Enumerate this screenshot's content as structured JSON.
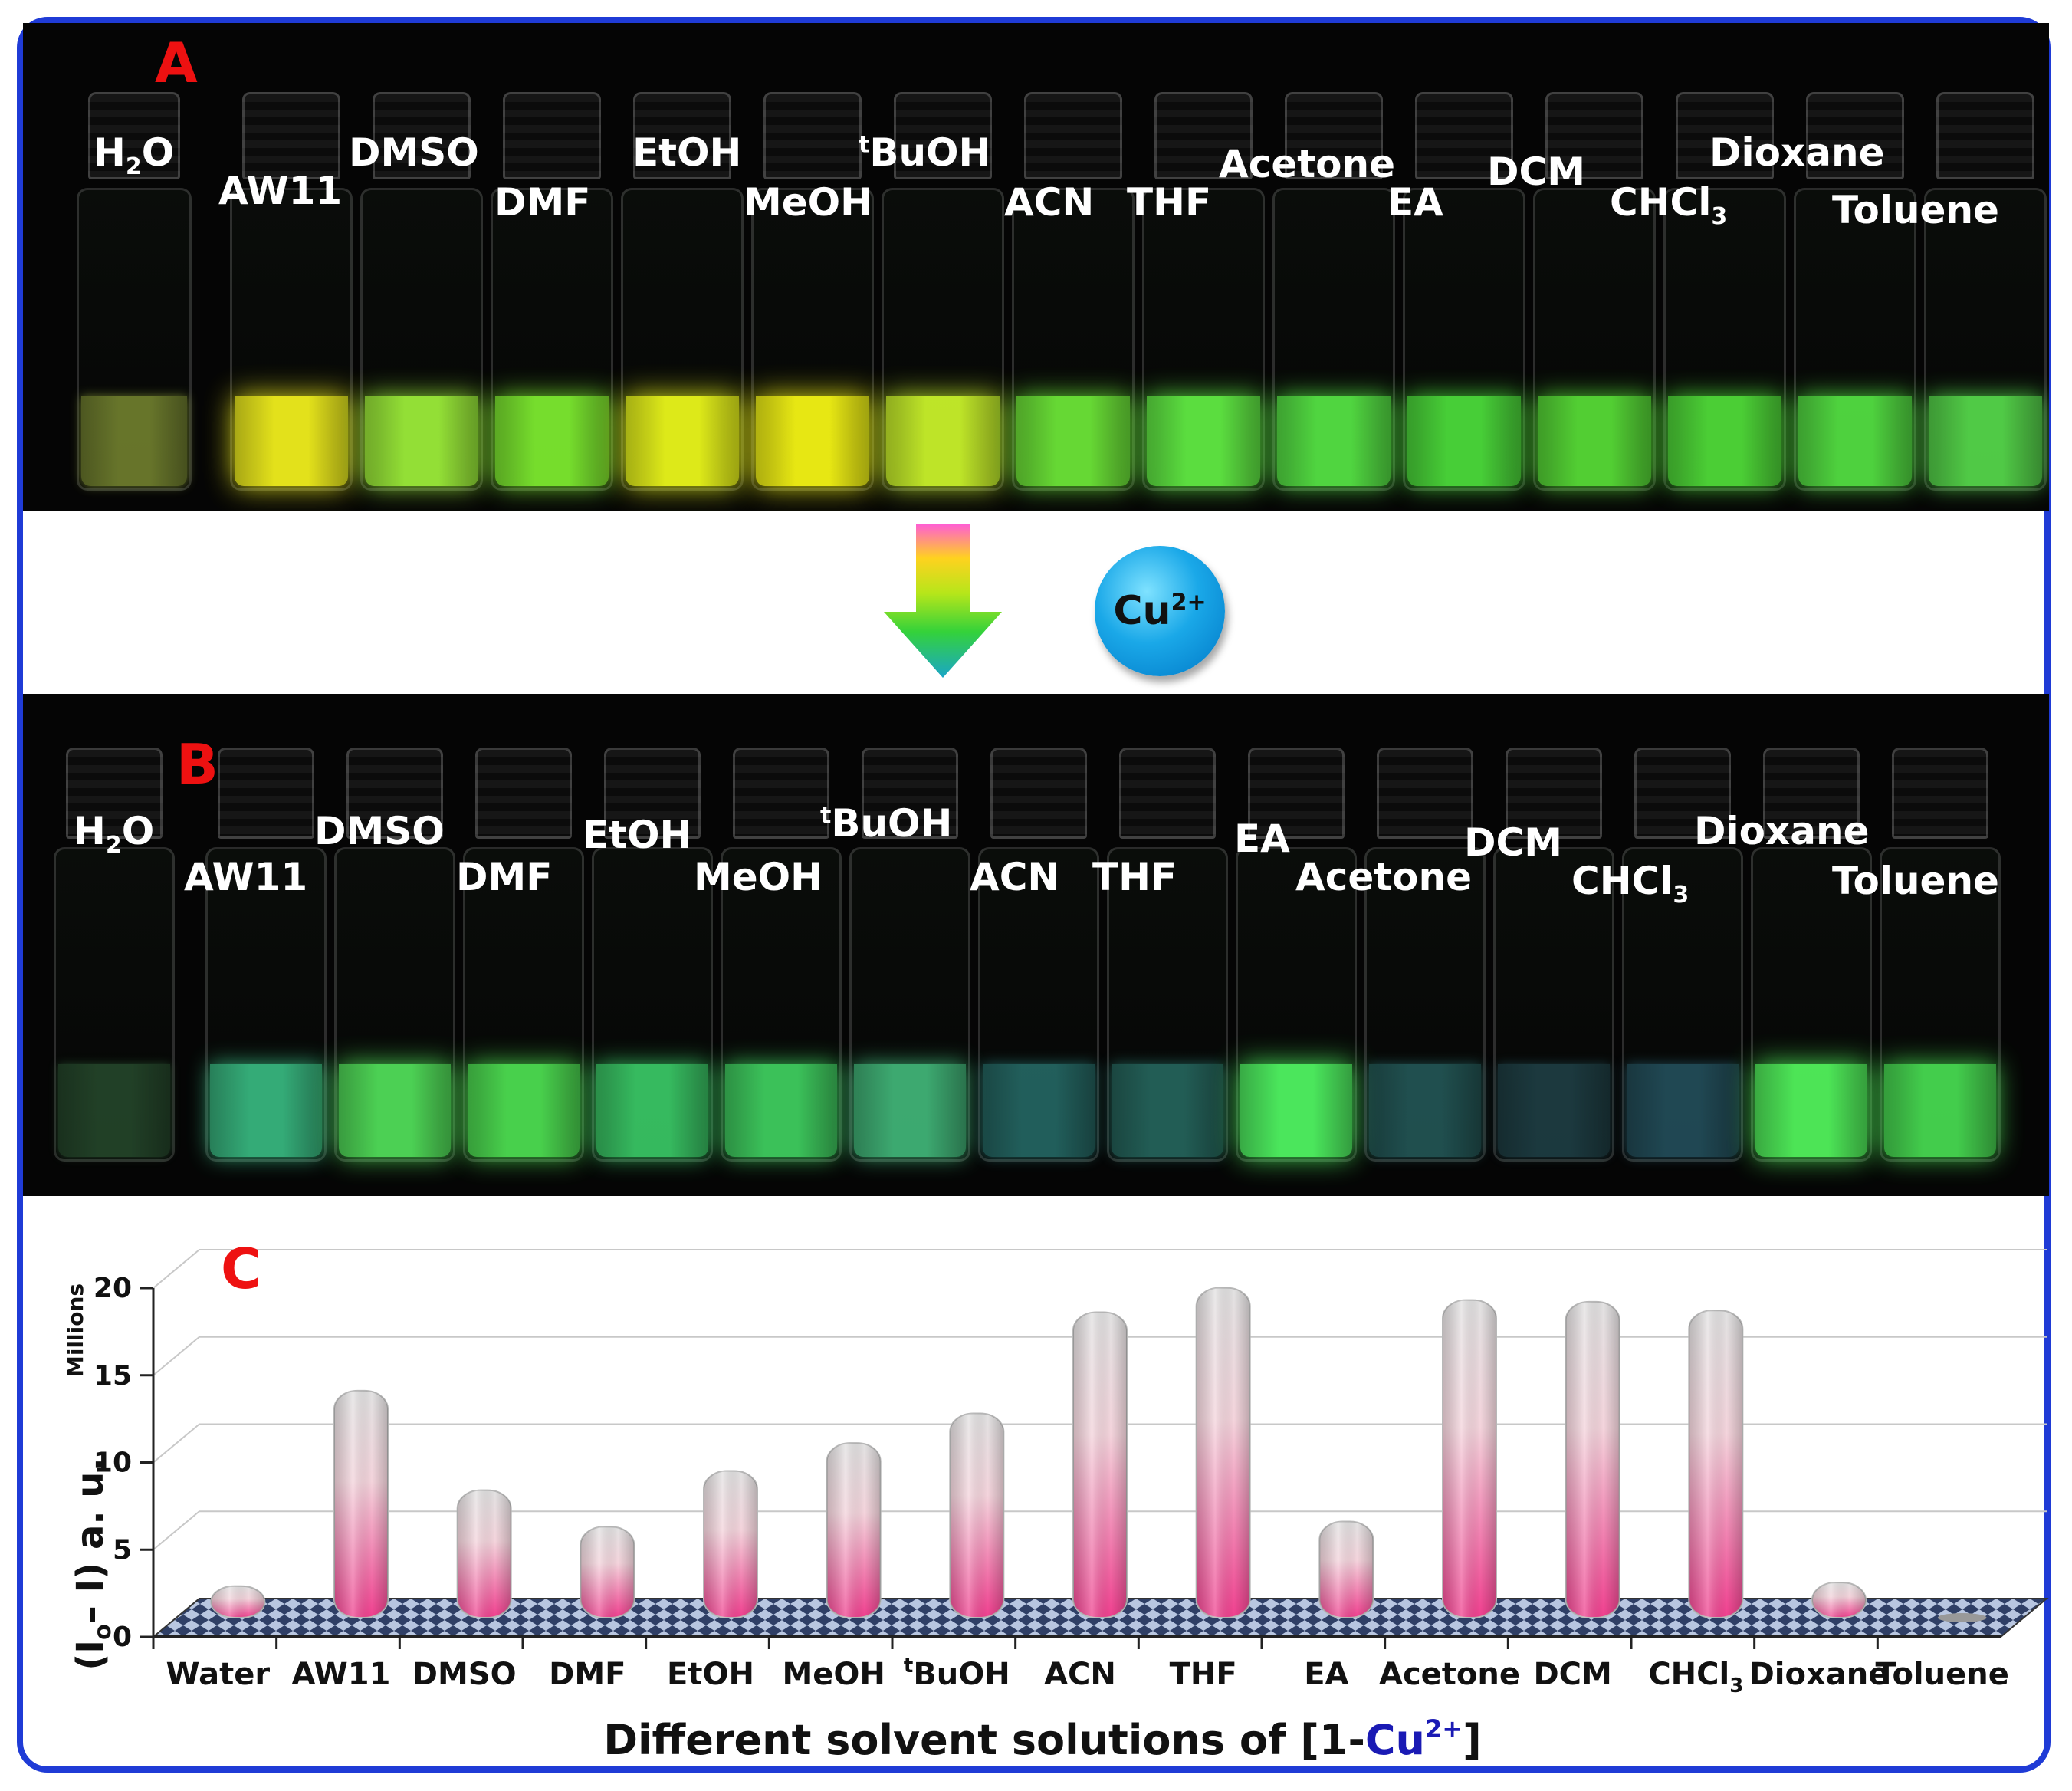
{
  "panels": {
    "a": {
      "letter": "A",
      "vials": [
        {
          "label": "H2O",
          "label_main": "H",
          "label_sub": "2",
          "label_tail": "O",
          "color": "#8fa23a",
          "glow": 0.35
        },
        {
          "label": "AW11",
          "label_main": "AW11",
          "label_sub": "",
          "label_tail": "",
          "color": "#e8e61c",
          "glow": 0.95
        },
        {
          "label": "DMSO",
          "label_main": "DMSO",
          "label_sub": "",
          "label_tail": "",
          "color": "#9ef03a",
          "glow": 0.85
        },
        {
          "label": "DMF",
          "label_main": "DMF",
          "label_sub": "",
          "label_tail": "",
          "color": "#7fee30",
          "glow": 0.85
        },
        {
          "label": "EtOH",
          "label_main": "EtOH",
          "label_sub": "",
          "label_tail": "",
          "color": "#e2ee1a",
          "glow": 0.95
        },
        {
          "label": "MeOH",
          "label_main": "MeOH",
          "label_sub": "",
          "label_tail": "",
          "color": "#ecec14",
          "glow": 0.95
        },
        {
          "label": "tBuOH",
          "label_main": "BuOH",
          "label_sup": "t",
          "label_sub": "",
          "label_tail": "",
          "color": "#c6ee2a",
          "glow": 0.9
        },
        {
          "label": "ACN",
          "label_main": "ACN",
          "label_sub": "",
          "label_tail": "",
          "color": "#6ee838",
          "glow": 0.85
        },
        {
          "label": "THF",
          "label_main": "THF",
          "label_sub": "",
          "label_tail": "",
          "color": "#62ee44",
          "glow": 0.85
        },
        {
          "label": "Acetone",
          "label_main": "Acetone",
          "label_sub": "",
          "label_tail": "",
          "color": "#58ea46",
          "glow": 0.8
        },
        {
          "label": "EA",
          "label_main": "EA",
          "label_sub": "",
          "label_tail": "",
          "color": "#4ee23c",
          "glow": 0.8
        },
        {
          "label": "DCM",
          "label_main": "DCM",
          "label_sub": "",
          "label_tail": "",
          "color": "#5ae238",
          "glow": 0.8
        },
        {
          "label": "CHCl3",
          "label_main": "CHCl",
          "label_sub": "3",
          "label_tail": "",
          "color": "#52e23a",
          "glow": 0.8
        },
        {
          "label": "Dioxane",
          "label_main": "Dioxane",
          "label_sub": "",
          "label_tail": "",
          "color": "#56e644",
          "glow": 0.8
        },
        {
          "label": "Toluene",
          "label_main": "Toluene",
          "label_sub": "",
          "label_tail": "",
          "color": "#5ae24e",
          "glow": 0.75
        }
      ]
    },
    "b": {
      "letter": "B",
      "vials": [
        {
          "label": "H2O",
          "label_main": "H",
          "label_sub": "2",
          "label_tail": "O",
          "color": "#2e5a36",
          "glow": 0.3
        },
        {
          "label": "AW11",
          "label_main": "AW11",
          "label_sub": "",
          "label_tail": "",
          "color": "#3cc68a",
          "glow": 0.7
        },
        {
          "label": "DMSO",
          "label_main": "DMSO",
          "label_sub": "",
          "label_tail": "",
          "color": "#52e05a",
          "glow": 0.85
        },
        {
          "label": "DMF",
          "label_main": "DMF",
          "label_sub": "",
          "label_tail": "",
          "color": "#4ee052",
          "glow": 0.85
        },
        {
          "label": "EtOH",
          "label_main": "EtOH",
          "label_sub": "",
          "label_tail": "",
          "color": "#3cd06a",
          "glow": 0.75
        },
        {
          "label": "MeOH",
          "label_main": "MeOH",
          "label_sub": "",
          "label_tail": "",
          "color": "#42d864",
          "glow": 0.75
        },
        {
          "label": "tBuOH",
          "label_main": "BuOH",
          "label_sup": "t",
          "label_sub": "",
          "label_tail": "",
          "color": "#46c482",
          "glow": 0.7
        },
        {
          "label": "ACN",
          "label_main": "ACN",
          "label_sub": "",
          "label_tail": "",
          "color": "#2b7c78",
          "glow": 0.45
        },
        {
          "label": "THF",
          "label_main": "THF",
          "label_sub": "",
          "label_tail": "",
          "color": "#2c7a70",
          "glow": 0.45
        },
        {
          "label": "EA",
          "label_main": "EA",
          "label_sub": "",
          "label_tail": "",
          "color": "#4ef060",
          "glow": 0.9
        },
        {
          "label": "Acetone",
          "label_main": "Acetone",
          "label_sub": "",
          "label_tail": "",
          "color": "#2a6a6a",
          "glow": 0.4
        },
        {
          "label": "DCM",
          "label_main": "DCM",
          "label_sub": "",
          "label_tail": "",
          "color": "#254e56",
          "glow": 0.35
        },
        {
          "label": "CHCl3",
          "label_main": "CHCl",
          "label_sub": "3",
          "label_tail": "",
          "color": "#2a6070",
          "glow": 0.4
        },
        {
          "label": "Dioxane",
          "label_main": "Dioxane",
          "label_sub": "",
          "label_tail": "",
          "color": "#50ee5a",
          "glow": 0.9
        },
        {
          "label": "Toluene",
          "label_main": "Toluene",
          "label_sub": "",
          "label_tail": "",
          "color": "#48dc52",
          "glow": 0.85
        }
      ]
    }
  },
  "arrow": {
    "ion_main": "Cu",
    "ion_sup": "2+"
  },
  "chart_data": {
    "type": "bar",
    "panel_letter": "C",
    "categories": [
      "Water",
      "AW11",
      "DMSO",
      "DMF",
      "EtOH",
      "MeOH",
      "BuOH",
      "ACN",
      "THF",
      "EA",
      "Acetone",
      "DCM",
      "CHCl",
      "Dioxane",
      "Toluene"
    ],
    "category_sups": [
      "",
      "",
      "",
      "",
      "",
      "",
      "t",
      "",
      "",
      "",
      "",
      "",
      "",
      "",
      ""
    ],
    "category_subs": [
      "",
      "",
      "",
      "",
      "",
      "",
      "",
      "",
      "",
      "",
      "",
      "",
      "3",
      "",
      ""
    ],
    "values": [
      1.2,
      12.4,
      6.7,
      4.6,
      7.8,
      9.4,
      11.1,
      16.9,
      18.3,
      4.9,
      17.6,
      17.5,
      17.0,
      1.4,
      0.0
    ],
    "ylim": [
      0,
      20
    ],
    "yticks": [
      0,
      5,
      10,
      15,
      20
    ],
    "ylabel_main": "(I",
    "ylabel_sub": "o",
    "ylabel_tail": "– I) a. u.",
    "ylabel_units": "Millions",
    "xlabel_main": "Different solvent solutions of [1-",
    "xlabel_ion": "Cu",
    "xlabel_sup": "2+",
    "xlabel_tail": "]",
    "bar_colors": {
      "top": "#e6e6e6",
      "bottom": "#f0408f"
    },
    "grid": true
  }
}
